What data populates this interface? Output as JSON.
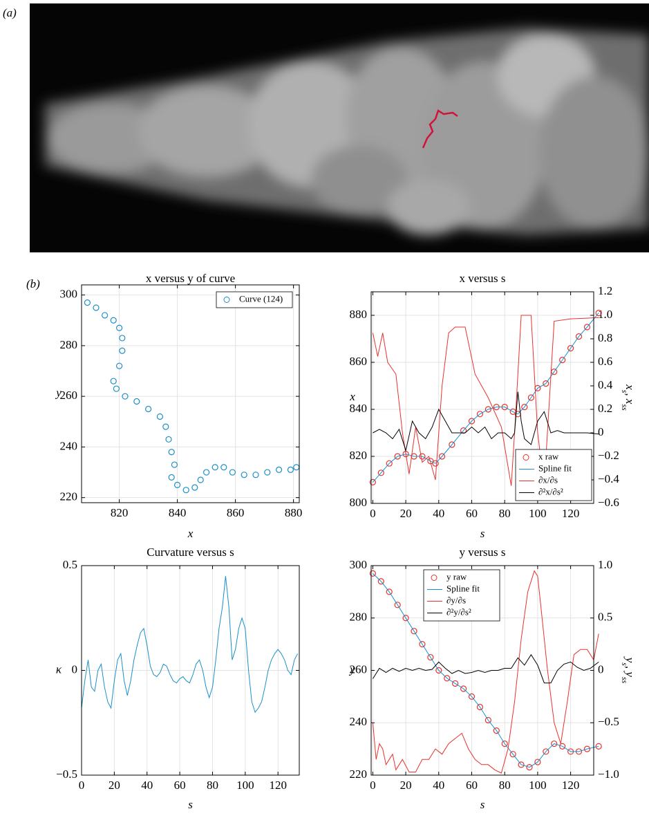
{
  "panel_labels": [
    "(a)",
    "(b)"
  ],
  "chart_data": [
    {
      "type": "line",
      "title": "x versus y of curve",
      "xlabel": "x",
      "ylabel": "y",
      "xlim": [
        807,
        882
      ],
      "ylim": [
        218,
        304
      ],
      "xticks": [
        820,
        840,
        860,
        880
      ],
      "yticks": [
        220,
        240,
        260,
        280,
        300
      ],
      "grid": true,
      "legend": "upper right",
      "series": [
        {
          "name": "Curve (124)",
          "color": "#1a8fc9",
          "style": "markers",
          "x": [
            809,
            812,
            815,
            818,
            820,
            821,
            821,
            820,
            818,
            819,
            822,
            826,
            830,
            834,
            836,
            837,
            838,
            839,
            838,
            840,
            843,
            846,
            848,
            850,
            853,
            856,
            859,
            863,
            867,
            871,
            875,
            879,
            881
          ],
          "values": [
            297,
            295,
            292,
            290,
            287,
            283,
            278,
            272,
            266,
            263,
            260,
            258,
            255,
            252,
            248,
            243,
            238,
            233,
            228,
            225,
            223,
            224,
            227,
            230,
            232,
            232,
            230,
            229,
            229,
            230,
            231,
            231,
            232
          ]
        }
      ]
    },
    {
      "type": "line",
      "title": "x versus s",
      "xlabel": "s",
      "ylabel": "x",
      "y2label": [
        "x",
        "s",
        ", x",
        "ss"
      ],
      "xlim": [
        -1,
        134
      ],
      "ylim": [
        800,
        890
      ],
      "y2lim": [
        -0.6,
        1.2
      ],
      "xticks": [
        0,
        20,
        40,
        60,
        80,
        100,
        120
      ],
      "yticks": [
        800,
        820,
        840,
        860,
        880
      ],
      "y2ticks": [
        {
          "value": -0.6,
          "label": "−0.6"
        },
        {
          "value": -0.4,
          "label": "−0.4"
        },
        {
          "value": -0.2,
          "label": "−0.2"
        },
        0,
        0.2,
        0.4,
        0.6,
        0.8,
        {
          "value": 1,
          "label": "1.0"
        },
        1.2
      ],
      "grid": true,
      "legend": "lower right",
      "series": [
        {
          "name": "x raw",
          "color": "#e8312c",
          "style": "markers",
          "x": [
            0,
            5,
            10,
            15,
            20,
            25,
            30,
            35,
            38,
            42,
            48,
            55,
            60,
            65,
            70,
            75,
            80,
            85,
            88,
            92,
            96,
            100,
            105,
            110,
            115,
            120,
            125,
            130,
            137
          ],
          "values": [
            809,
            813,
            817,
            820,
            821,
            820,
            820,
            818,
            817,
            820,
            825,
            831,
            835,
            838,
            840,
            841,
            841,
            839,
            838,
            841,
            845,
            849,
            851,
            856,
            861,
            866,
            871,
            875,
            881
          ]
        },
        {
          "name": "Spline fit",
          "color": "#1a8fc9",
          "style": "line",
          "x": [
            0,
            5,
            10,
            15,
            20,
            25,
            30,
            35,
            38,
            42,
            48,
            55,
            60,
            65,
            70,
            75,
            80,
            85,
            88,
            92,
            96,
            100,
            105,
            110,
            115,
            120,
            125,
            130,
            137
          ],
          "values": [
            809,
            813,
            817,
            820,
            821,
            820,
            820,
            818,
            817,
            820,
            825,
            831,
            835,
            838,
            840,
            841,
            841,
            839,
            838,
            841,
            845,
            849,
            851,
            856,
            861,
            866,
            871,
            875,
            881
          ]
        },
        {
          "name": "∂x/∂s",
          "color": "#e8312c",
          "style": "line",
          "axis": "y2",
          "x": [
            0,
            3,
            6,
            9,
            14,
            18,
            22,
            26,
            30,
            34,
            38,
            42,
            46,
            50,
            56,
            62,
            70,
            78,
            84,
            86,
            90,
            96,
            100,
            104,
            110,
            120,
            137
          ],
          "values": [
            0.85,
            0.65,
            0.85,
            0.6,
            0.5,
            0.0,
            -0.35,
            0.05,
            -0.25,
            -0.2,
            -0.4,
            0.4,
            0.85,
            0.9,
            0.9,
            0.5,
            0.3,
            0.05,
            -0.45,
            0.0,
            1.0,
            1.0,
            0.0,
            -0.45,
            0.95,
            0.97,
            0.98
          ]
        },
        {
          "name": "∂²x/∂s²",
          "color": "#000000",
          "style": "line",
          "axis": "y2",
          "x": [
            0,
            4,
            8,
            12,
            16,
            20,
            24,
            28,
            32,
            36,
            40,
            44,
            48,
            52,
            56,
            60,
            64,
            68,
            72,
            76,
            80,
            84,
            86,
            88,
            90,
            92,
            96,
            100,
            104,
            108,
            112,
            116,
            120,
            130,
            137
          ],
          "values": [
            0,
            0.03,
            0,
            -0.05,
            0.03,
            -0.15,
            0.1,
            0,
            -0.05,
            0.05,
            0.2,
            0.1,
            0,
            0,
            0,
            0.05,
            0,
            0.05,
            -0.05,
            0,
            0,
            -0.05,
            0,
            0.35,
            0.1,
            -0.05,
            -0.1,
            0.1,
            0.18,
            0,
            0.02,
            0,
            0,
            0,
            -0.01
          ]
        }
      ]
    },
    {
      "type": "line",
      "title": "Curvature versus s",
      "xlabel": "s",
      "ylabel": "κ",
      "xlim": [
        0,
        133
      ],
      "ylim": [
        -0.5,
        0.5
      ],
      "xticks": [
        0,
        20,
        40,
        60,
        80,
        100,
        120
      ],
      "yticks": [
        {
          "value": -0.5,
          "label": "−0.5"
        },
        0,
        0.5
      ],
      "grid": true,
      "series": [
        {
          "color": "#1a8fc9",
          "style": "line",
          "x": [
            0,
            2,
            4,
            6,
            8,
            10,
            12,
            14,
            16,
            18,
            20,
            22,
            24,
            26,
            28,
            30,
            32,
            34,
            36,
            38,
            40,
            42,
            44,
            46,
            48,
            50,
            52,
            54,
            56,
            58,
            60,
            62,
            64,
            66,
            68,
            70,
            72,
            74,
            76,
            78,
            80,
            82,
            84,
            86,
            88,
            90,
            92,
            94,
            96,
            98,
            100,
            102,
            104,
            106,
            108,
            110,
            112,
            114,
            116,
            118,
            120,
            122,
            124,
            126,
            128,
            130,
            132
          ],
          "values": [
            -0.18,
            -0.05,
            0.05,
            -0.08,
            -0.1,
            0.0,
            0.03,
            -0.08,
            -0.15,
            -0.18,
            -0.05,
            0.05,
            0.08,
            -0.05,
            -0.12,
            -0.05,
            0.05,
            0.12,
            0.18,
            0.2,
            0.12,
            0.02,
            -0.02,
            -0.03,
            -0.01,
            0.03,
            0.02,
            -0.02,
            -0.05,
            -0.06,
            -0.04,
            -0.03,
            -0.05,
            -0.06,
            -0.02,
            0.03,
            0.05,
            0.0,
            -0.08,
            -0.13,
            -0.08,
            0.05,
            0.2,
            0.3,
            0.45,
            0.3,
            0.05,
            0.1,
            0.2,
            0.25,
            0.2,
            0.0,
            -0.15,
            -0.2,
            -0.18,
            -0.15,
            -0.08,
            0.0,
            0.05,
            0.08,
            0.1,
            0.08,
            0.05,
            0.0,
            -0.02,
            0.05,
            0.08
          ]
        }
      ]
    },
    {
      "type": "line",
      "title": "y versus s",
      "xlabel": "s",
      "ylabel": "y",
      "y2label": [
        "y",
        "s",
        ", y",
        "ss"
      ],
      "xlim": [
        -1,
        134
      ],
      "ylim": [
        220,
        300
      ],
      "y2lim": [
        -1,
        1
      ],
      "xticks": [
        0,
        20,
        40,
        60,
        80,
        100,
        120
      ],
      "yticks": [
        220,
        240,
        260,
        280,
        300
      ],
      "y2ticks": [
        {
          "value": -1,
          "label": "−1.0"
        },
        {
          "value": -0.5,
          "label": "−0.5"
        },
        0,
        0.5,
        {
          "value": 1,
          "label": "1.0"
        }
      ],
      "grid": true,
      "legend": "upper center",
      "series": [
        {
          "name": "y raw",
          "color": "#e8312c",
          "style": "markers",
          "x": [
            0,
            5,
            10,
            15,
            20,
            25,
            30,
            35,
            40,
            45,
            50,
            55,
            60,
            65,
            70,
            75,
            80,
            85,
            90,
            95,
            100,
            105,
            110,
            115,
            120,
            125,
            130,
            137
          ],
          "values": [
            297,
            294,
            290,
            285,
            280,
            275,
            270,
            265,
            260,
            257,
            255,
            253,
            250,
            246,
            241,
            237,
            232,
            228,
            224,
            223,
            225,
            229,
            232,
            231,
            229,
            229,
            230,
            231
          ]
        },
        {
          "name": "Spline fit",
          "color": "#1a8fc9",
          "style": "line",
          "x": [
            0,
            5,
            10,
            15,
            20,
            25,
            30,
            35,
            40,
            45,
            50,
            55,
            60,
            65,
            70,
            75,
            80,
            85,
            90,
            95,
            100,
            105,
            110,
            115,
            120,
            125,
            130,
            137
          ],
          "values": [
            297,
            294,
            290,
            285,
            280,
            275,
            270,
            265,
            260,
            257,
            255,
            253,
            250,
            246,
            241,
            237,
            232,
            228,
            224,
            223,
            225,
            229,
            232,
            231,
            229,
            229,
            230,
            231
          ]
        },
        {
          "name": "∂y/∂s",
          "color": "#e8312c",
          "style": "line",
          "axis": "y2",
          "x": [
            0,
            2,
            4,
            6,
            8,
            10,
            12,
            14,
            18,
            22,
            26,
            30,
            34,
            38,
            42,
            46,
            50,
            54,
            58,
            62,
            66,
            70,
            74,
            78,
            82,
            86,
            90,
            94,
            98,
            100,
            102,
            106,
            110,
            114,
            118,
            122,
            126,
            130,
            134,
            137
          ],
          "values": [
            -0.5,
            -0.85,
            -0.7,
            -0.75,
            -0.9,
            -0.85,
            -0.8,
            -0.95,
            -0.85,
            -0.97,
            -0.97,
            -0.85,
            -0.85,
            -0.75,
            -0.8,
            -0.7,
            -0.65,
            -0.6,
            -0.75,
            -0.85,
            -0.9,
            -0.9,
            -0.95,
            -0.98,
            -0.75,
            -0.3,
            0.3,
            0.75,
            0.95,
            0.9,
            0.6,
            0.0,
            -0.5,
            -0.7,
            -0.3,
            0.15,
            0.2,
            0.2,
            0.1,
            0.35
          ]
        },
        {
          "name": "∂²y/∂s²",
          "color": "#000000",
          "style": "line",
          "axis": "y2",
          "x": [
            0,
            4,
            8,
            12,
            16,
            20,
            24,
            28,
            32,
            36,
            40,
            44,
            48,
            52,
            56,
            60,
            64,
            68,
            72,
            76,
            80,
            84,
            88,
            92,
            96,
            100,
            104,
            108,
            112,
            116,
            120,
            124,
            128,
            132,
            137
          ],
          "values": [
            -0.08,
            0.02,
            -0.02,
            0.02,
            -0.01,
            0.02,
            0,
            0.02,
            0,
            0.01,
            0.08,
            0.02,
            -0.03,
            0,
            -0.03,
            -0.02,
            0,
            -0.02,
            0,
            0,
            0.02,
            0.02,
            0.12,
            0.05,
            0.15,
            0.05,
            -0.12,
            -0.12,
            0,
            0.06,
            0.08,
            0.03,
            0,
            0.02,
            0.08
          ]
        }
      ]
    }
  ]
}
